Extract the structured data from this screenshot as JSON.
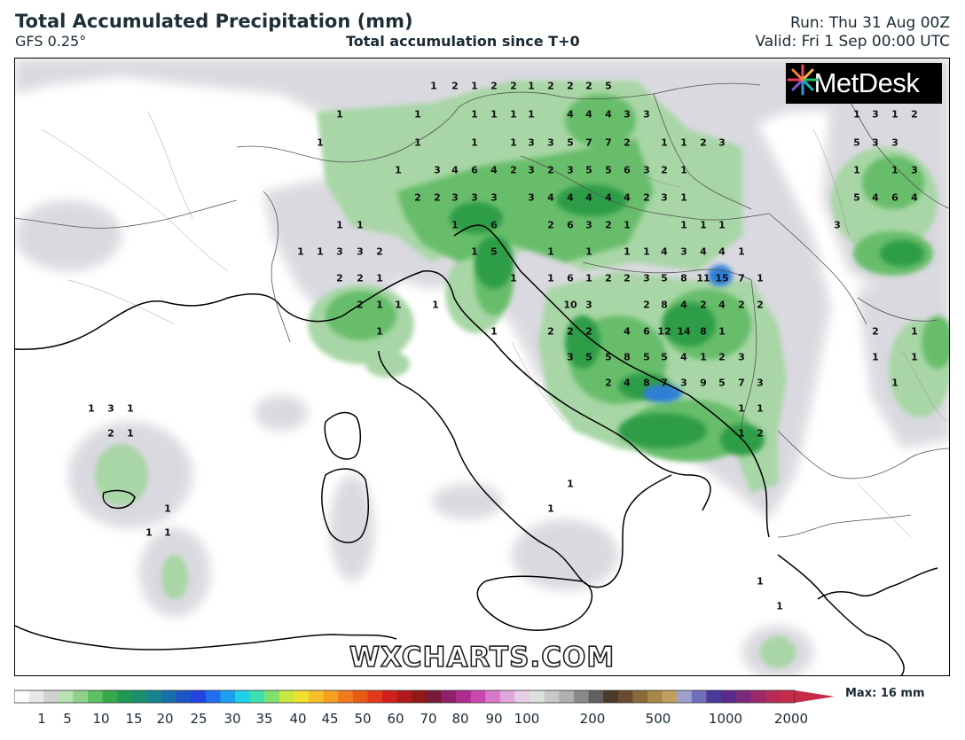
{
  "header": {
    "title": "Total Accumulated Precipitation (mm)",
    "model": "GFS 0.25°",
    "subtitle": "Total accumulation since T+0",
    "run": "Run: Thu 31 Aug 00Z",
    "valid": "Valid: Fri 1 Sep 00:00 UTC"
  },
  "logo": {
    "text": "MetDesk"
  },
  "watermark": "WXCHARTS.COM",
  "legend": {
    "ticks": [
      "1",
      "5",
      "10",
      "15",
      "20",
      "25",
      "30",
      "35",
      "40",
      "45",
      "50",
      "60",
      "70",
      "80",
      "90",
      "100",
      "200",
      "500",
      "1000",
      "2000"
    ],
    "max_label": "Max: 16 mm"
  },
  "colors": {
    "land_outline": "#000000",
    "border": "#666666",
    "light_rain": "#d9d9df",
    "green_light": "#a9d8a6",
    "green_mid": "#6cbf6c",
    "green_dark": "#2e9e46",
    "blue": "#2f7fd8"
  },
  "values": [
    [
      "1",
      488,
      96
    ],
    [
      "2",
      512,
      96
    ],
    [
      "1",
      534,
      96
    ],
    [
      "2",
      556,
      96
    ],
    [
      "2",
      578,
      96
    ],
    [
      "1",
      598,
      96
    ],
    [
      "2",
      620,
      96
    ],
    [
      "2",
      642,
      96
    ],
    [
      "2",
      663,
      96
    ],
    [
      "5",
      685,
      96
    ],
    [
      "1",
      382,
      128
    ],
    [
      "1",
      470,
      128
    ],
    [
      "1",
      534,
      128
    ],
    [
      "1",
      556,
      128
    ],
    [
      "1",
      578,
      128
    ],
    [
      "1",
      598,
      128
    ],
    [
      "4",
      642,
      128
    ],
    [
      "4",
      663,
      128
    ],
    [
      "4",
      685,
      128
    ],
    [
      "3",
      706,
      128
    ],
    [
      "3",
      728,
      128
    ],
    [
      "1",
      360,
      160
    ],
    [
      "1",
      470,
      160
    ],
    [
      "1",
      534,
      160
    ],
    [
      "1",
      578,
      160
    ],
    [
      "3",
      598,
      160
    ],
    [
      "3",
      620,
      160
    ],
    [
      "5",
      642,
      160
    ],
    [
      "7",
      663,
      160
    ],
    [
      "7",
      685,
      160
    ],
    [
      "2",
      706,
      160
    ],
    [
      "1",
      748,
      160
    ],
    [
      "1",
      770,
      160
    ],
    [
      "2",
      792,
      160
    ],
    [
      "3",
      813,
      160
    ],
    [
      "1",
      448,
      191
    ],
    [
      "3",
      492,
      191
    ],
    [
      "4",
      512,
      191
    ],
    [
      "6",
      534,
      191
    ],
    [
      "4",
      556,
      191
    ],
    [
      "2",
      578,
      191
    ],
    [
      "3",
      598,
      191
    ],
    [
      "2",
      620,
      191
    ],
    [
      "3",
      642,
      191
    ],
    [
      "5",
      663,
      191
    ],
    [
      "5",
      685,
      191
    ],
    [
      "6",
      706,
      191
    ],
    [
      "3",
      728,
      191
    ],
    [
      "2",
      748,
      191
    ],
    [
      "1",
      770,
      191
    ],
    [
      "2",
      470,
      222
    ],
    [
      "2",
      492,
      222
    ],
    [
      "3",
      512,
      222
    ],
    [
      "3",
      534,
      222
    ],
    [
      "3",
      556,
      222
    ],
    [
      "3",
      598,
      222
    ],
    [
      "4",
      620,
      222
    ],
    [
      "4",
      642,
      222
    ],
    [
      "4",
      663,
      222
    ],
    [
      "4",
      685,
      222
    ],
    [
      "4",
      706,
      222
    ],
    [
      "2",
      728,
      222
    ],
    [
      "3",
      748,
      222
    ],
    [
      "1",
      770,
      222
    ],
    [
      "1",
      382,
      253
    ],
    [
      "1",
      405,
      253
    ],
    [
      "1",
      512,
      253
    ],
    [
      "6",
      556,
      253
    ],
    [
      "2",
      620,
      253
    ],
    [
      "6",
      642,
      253
    ],
    [
      "3",
      663,
      253
    ],
    [
      "2",
      685,
      253
    ],
    [
      "1",
      706,
      253
    ],
    [
      "1",
      770,
      253
    ],
    [
      "1",
      792,
      253
    ],
    [
      "1",
      813,
      253
    ],
    [
      "1",
      338,
      283
    ],
    [
      "1",
      360,
      283
    ],
    [
      "3",
      382,
      283
    ],
    [
      "3",
      405,
      283
    ],
    [
      "2",
      427,
      283
    ],
    [
      "1",
      534,
      283
    ],
    [
      "5",
      556,
      283
    ],
    [
      "1",
      620,
      283
    ],
    [
      "1",
      663,
      283
    ],
    [
      "1",
      706,
      283
    ],
    [
      "1",
      728,
      283
    ],
    [
      "4",
      748,
      283
    ],
    [
      "3",
      770,
      283
    ],
    [
      "4",
      792,
      283
    ],
    [
      "4",
      813,
      283
    ],
    [
      "1",
      835,
      283
    ],
    [
      "2",
      382,
      313
    ],
    [
      "2",
      405,
      313
    ],
    [
      "1",
      427,
      313
    ],
    [
      "1",
      578,
      313
    ],
    [
      "1",
      620,
      313
    ],
    [
      "6",
      642,
      313
    ],
    [
      "1",
      663,
      313
    ],
    [
      "2",
      685,
      313
    ],
    [
      "2",
      706,
      313
    ],
    [
      "3",
      728,
      313
    ],
    [
      "5",
      748,
      313
    ],
    [
      "8",
      770,
      313
    ],
    [
      "11",
      792,
      313
    ],
    [
      "15",
      813,
      313
    ],
    [
      "7",
      835,
      313
    ],
    [
      "1",
      856,
      313
    ],
    [
      "2",
      405,
      343
    ],
    [
      "1",
      427,
      343
    ],
    [
      "1",
      448,
      343
    ],
    [
      "1",
      490,
      343
    ],
    [
      "10",
      642,
      343
    ],
    [
      "3",
      663,
      343
    ],
    [
      "2",
      728,
      343
    ],
    [
      "8",
      748,
      343
    ],
    [
      "4",
      770,
      343
    ],
    [
      "2",
      792,
      343
    ],
    [
      "4",
      813,
      343
    ],
    [
      "2",
      835,
      343
    ],
    [
      "2",
      856,
      343
    ],
    [
      "1",
      427,
      373
    ],
    [
      "1",
      556,
      373
    ],
    [
      "2",
      620,
      373
    ],
    [
      "2",
      642,
      373
    ],
    [
      "2",
      663,
      373
    ],
    [
      "4",
      706,
      373
    ],
    [
      "6",
      728,
      373
    ],
    [
      "12",
      748,
      373
    ],
    [
      "14",
      770,
      373
    ],
    [
      "8",
      792,
      373
    ],
    [
      "1",
      813,
      373
    ],
    [
      "3",
      642,
      402
    ],
    [
      "5",
      663,
      402
    ],
    [
      "5",
      685,
      402
    ],
    [
      "8",
      706,
      402
    ],
    [
      "5",
      728,
      402
    ],
    [
      "5",
      748,
      402
    ],
    [
      "4",
      770,
      402
    ],
    [
      "1",
      792,
      402
    ],
    [
      "2",
      813,
      402
    ],
    [
      "3",
      835,
      402
    ],
    [
      "2",
      685,
      431
    ],
    [
      "4",
      706,
      431
    ],
    [
      "8",
      728,
      431
    ],
    [
      "7",
      748,
      431
    ],
    [
      "3",
      770,
      431
    ],
    [
      "9",
      792,
      431
    ],
    [
      "5",
      813,
      431
    ],
    [
      "7",
      835,
      431
    ],
    [
      "3",
      856,
      431
    ],
    [
      "1",
      835,
      460
    ],
    [
      "1",
      856,
      460
    ],
    [
      "1",
      835,
      488
    ],
    [
      "2",
      856,
      488
    ],
    [
      "1",
      102,
      460
    ],
    [
      "3",
      124,
      460
    ],
    [
      "1",
      146,
      460
    ],
    [
      "2",
      124,
      488
    ],
    [
      "1",
      146,
      488
    ],
    [
      "1",
      188,
      573
    ],
    [
      "1",
      167,
      600
    ],
    [
      "1",
      188,
      600
    ],
    [
      "1",
      642,
      545
    ],
    [
      "1",
      620,
      573
    ],
    [
      "1",
      856,
      655
    ],
    [
      "1",
      878,
      683
    ],
    [
      "1",
      965,
      128
    ],
    [
      "3",
      986,
      128
    ],
    [
      "1",
      1008,
      128
    ],
    [
      "2",
      1030,
      128
    ],
    [
      "5",
      965,
      160
    ],
    [
      "3",
      986,
      160
    ],
    [
      "3",
      1008,
      160
    ],
    [
      "1",
      965,
      191
    ],
    [
      "1",
      1008,
      191
    ],
    [
      "3",
      1030,
      191
    ],
    [
      "5",
      965,
      222
    ],
    [
      "4",
      986,
      222
    ],
    [
      "6",
      1008,
      222
    ],
    [
      "4",
      1030,
      222
    ],
    [
      "3",
      943,
      253
    ],
    [
      "2",
      986,
      373
    ],
    [
      "1",
      1030,
      373
    ],
    [
      "1",
      986,
      402
    ],
    [
      "1",
      1030,
      402
    ],
    [
      "1",
      1008,
      431
    ]
  ]
}
